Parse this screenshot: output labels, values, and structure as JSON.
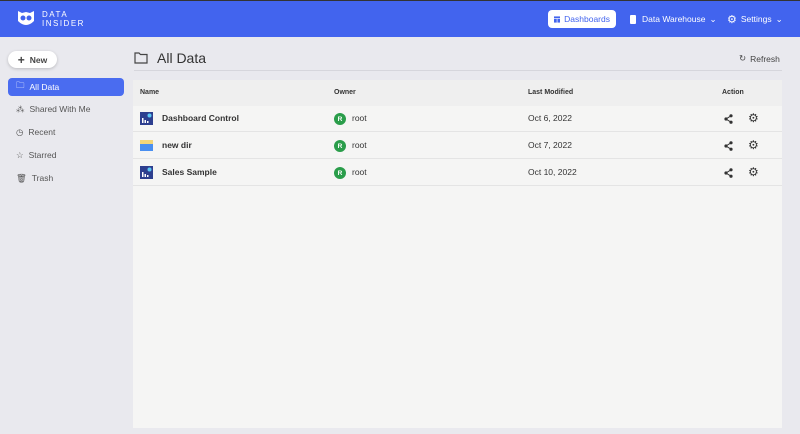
{
  "header": {
    "logo_line1": "DATA",
    "logo_line2": "INSIDER",
    "nav": [
      {
        "label": "Dashboards",
        "icon": "dashboard-icon",
        "active": true
      },
      {
        "label": "Data Warehouse",
        "icon": "database-icon"
      },
      {
        "label": "Settings",
        "icon": "gear-icon"
      }
    ]
  },
  "sidebar": {
    "new_label": "New",
    "items": [
      {
        "label": "All Data",
        "icon": "folder-icon"
      },
      {
        "label": "Shared With Me",
        "icon": "share-icon"
      },
      {
        "label": "Recent",
        "icon": "clock-icon"
      },
      {
        "label": "Starred",
        "icon": "star-icon"
      },
      {
        "label": "Trash",
        "icon": "trash-icon"
      }
    ]
  },
  "main": {
    "title": "All Data",
    "refresh_label": "Refresh",
    "columns": [
      "Name",
      "Owner",
      "Last Modified",
      "Action"
    ],
    "rows": [
      {
        "name": "Dashboard Control",
        "type": "dashboard",
        "owner_initial": "R",
        "owner": "root",
        "modified": "Oct 6, 2022"
      },
      {
        "name": "new dir",
        "type": "folder",
        "owner_initial": "R",
        "owner": "root",
        "modified": "Oct 7, 2022"
      },
      {
        "name": "Sales Sample",
        "type": "dashboard",
        "owner_initial": "R",
        "owner": "root",
        "modified": "Oct 10, 2022"
      }
    ]
  },
  "colors": {
    "primary": "#4264ee",
    "owner_avatar": "#2a9d4a"
  }
}
